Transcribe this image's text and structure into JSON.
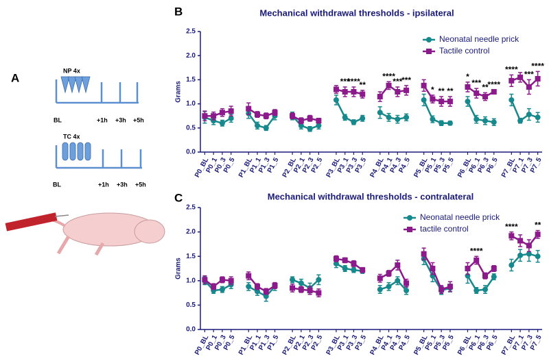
{
  "panel_a": {
    "label": "A",
    "np_label": "NP 4x",
    "tc_label": "TC 4x",
    "np_times": [
      "BL",
      "+1h",
      "+3h",
      "+5h"
    ],
    "tc_times": [
      "BL",
      "+1h",
      "+3h",
      "+5h"
    ]
  },
  "chart_data": [
    {
      "type": "line",
      "label": "B",
      "title": "Mechanical withdrawal thresholds - ipsilateral",
      "y_label": "Grams",
      "categories": [
        "P0_BL",
        "P0_1",
        "P0_3",
        "P0_5",
        null,
        "P1_BL",
        "P1_1",
        "P1_3",
        "P1_5",
        null,
        "P2_BL",
        "P2_1",
        "P2_3",
        "P2_5",
        null,
        "P3_BL",
        "P3_1",
        "P3_3",
        "P3_5",
        null,
        "P4_BL",
        "P4_1",
        "P4_3",
        "P4_5",
        null,
        "P5_BL",
        "P5_1",
        "P5_3",
        "P5_5",
        null,
        "P6_BL",
        "P6_1",
        "P6_3",
        "P6_5",
        null,
        "P7_BL",
        "P7_1",
        "P7_3",
        "P7_5"
      ],
      "ylim": [
        0,
        2.5
      ],
      "yticks": [
        {
          "value": 0,
          "label": "0.0"
        },
        0.5,
        {
          "value": 1,
          "label": "1.0"
        },
        1.5,
        {
          "value": 2,
          "label": "2.0"
        },
        2.5
      ],
      "legend": "upper right",
      "series": [
        {
          "name": "Neonatal needle prick",
          "color": "#17888c",
          "marker": "circle",
          "values": [
            0.72,
            0.65,
            0.6,
            0.7,
            null,
            0.8,
            0.55,
            0.5,
            0.75,
            null,
            0.75,
            0.55,
            0.48,
            0.55,
            null,
            1.08,
            0.72,
            0.62,
            0.7,
            null,
            0.82,
            0.72,
            0.68,
            0.72,
            null,
            1.08,
            0.68,
            0.6,
            0.6,
            null,
            1.05,
            0.68,
            0.65,
            0.62,
            null,
            1.08,
            0.65,
            0.78,
            0.72
          ],
          "errors": [
            0.12,
            0.08,
            0.06,
            0.08,
            null,
            0.1,
            0.07,
            0.05,
            0.08,
            null,
            0.08,
            0.07,
            0.05,
            0.07,
            null,
            0.1,
            0.06,
            0.05,
            0.06,
            null,
            0.12,
            0.08,
            0.08,
            0.07,
            null,
            0.12,
            0.07,
            0.05,
            0.04,
            null,
            0.1,
            0.08,
            0.08,
            0.07,
            null,
            0.12,
            0.05,
            0.12,
            0.1
          ]
        },
        {
          "name": "Tactile control",
          "color": "#8b1a8b",
          "marker": "square",
          "values": [
            0.75,
            0.75,
            0.82,
            0.85,
            null,
            0.9,
            0.78,
            0.75,
            0.82,
            null,
            0.75,
            0.65,
            0.7,
            0.65,
            null,
            1.3,
            1.25,
            1.25,
            1.2,
            null,
            1.15,
            1.38,
            1.25,
            1.28,
            null,
            1.38,
            1.1,
            1.05,
            1.05,
            null,
            1.35,
            1.22,
            1.15,
            1.25,
            null,
            1.48,
            1.55,
            1.35,
            1.52
          ],
          "errors": [
            0.1,
            0.08,
            0.08,
            0.1,
            null,
            0.12,
            0.06,
            0.06,
            0.06,
            null,
            0.06,
            0.06,
            0.06,
            0.05,
            null,
            0.08,
            0.1,
            0.1,
            0.08,
            null,
            0.1,
            0.08,
            0.1,
            0.1,
            null,
            0.12,
            0.08,
            0.1,
            0.1,
            null,
            0.1,
            0.1,
            0.08,
            0.04,
            null,
            0.12,
            0.1,
            0.15,
            0.15
          ]
        }
      ],
      "annotations": [
        {
          "text": "***",
          "category": "P3_1"
        },
        {
          "text": "****",
          "category": "P3_3"
        },
        {
          "text": "**",
          "category": "P3_5"
        },
        {
          "text": "****",
          "category": "P4_1"
        },
        {
          "text": "***",
          "category": "P4_3"
        },
        {
          "text": "***",
          "category": "P4_5"
        },
        {
          "text": "*",
          "category": "P5_1"
        },
        {
          "text": "**",
          "category": "P5_3"
        },
        {
          "text": "**",
          "category": "P5_5"
        },
        {
          "text": "*",
          "category": "P6_BL"
        },
        {
          "text": "***",
          "category": "P6_1"
        },
        {
          "text": "**",
          "category": "P6_3"
        },
        {
          "text": "****",
          "category": "P6_5"
        },
        {
          "text": "****",
          "category": "P7_BL"
        },
        {
          "text": "***",
          "category": "P7_3"
        },
        {
          "text": "****",
          "category": "P7_5"
        }
      ]
    },
    {
      "type": "line",
      "label": "C",
      "title": "Mechanical withdrawal thresholds - contralateral",
      "y_label": "Grams",
      "categories": [
        "P0_BL",
        "P0_1",
        "P0_3",
        "P0_5",
        null,
        "P1_BL",
        "P1_1",
        "P1_3",
        "P1_5",
        null,
        "P2_BL",
        "P2_1",
        "P2_3",
        "P2_5",
        null,
        "P3_BL",
        "P3_1",
        "P3_3",
        "P3_5",
        null,
        "P4_BL",
        "P4_1",
        "P4_3",
        "P4_5",
        null,
        "P5_BL",
        "P5_1",
        "P5_3",
        "P5_5",
        null,
        "P6_BL",
        "P6_1",
        "P6_3",
        "P6_5",
        null,
        "P7_BL",
        "P7_1",
        "P7_3",
        "P7_5"
      ],
      "ylim": [
        0,
        2.5
      ],
      "yticks": [
        {
          "value": 0,
          "label": "0.0"
        },
        0.5,
        {
          "value": 1,
          "label": "1.0"
        },
        1.5,
        {
          "value": 2,
          "label": "2.0"
        },
        2.5
      ],
      "legend": "upper right",
      "series": [
        {
          "name": "Neonatal needle prick",
          "color": "#17888c",
          "marker": "circle",
          "values": [
            1.0,
            0.8,
            0.82,
            0.92,
            null,
            0.88,
            0.78,
            0.68,
            0.88,
            null,
            1.02,
            0.95,
            0.85,
            1.02,
            null,
            1.35,
            1.25,
            1.22,
            1.2,
            null,
            0.82,
            0.88,
            1.0,
            0.8,
            null,
            1.45,
            1.1,
            0.8,
            0.85,
            null,
            1.1,
            0.8,
            0.82,
            1.08,
            null,
            1.32,
            1.52,
            1.55,
            1.5
          ],
          "errors": [
            0.08,
            0.06,
            0.06,
            0.08,
            null,
            0.08,
            0.08,
            0.1,
            0.08,
            null,
            0.06,
            0.08,
            0.1,
            0.1,
            null,
            0.08,
            0.06,
            0.05,
            0.05,
            null,
            0.08,
            0.08,
            0.08,
            0.08,
            null,
            0.12,
            0.12,
            0.08,
            0.08,
            null,
            0.15,
            0.06,
            0.08,
            0.06,
            null,
            0.12,
            0.12,
            0.15,
            0.12
          ]
        },
        {
          "name": "tactile control",
          "color": "#8b1a8b",
          "marker": "square",
          "values": [
            1.02,
            0.88,
            1.02,
            1.0,
            null,
            1.1,
            0.88,
            0.78,
            0.9,
            null,
            0.85,
            0.82,
            0.8,
            0.75,
            null,
            1.45,
            1.42,
            1.35,
            1.22,
            null,
            1.05,
            1.15,
            1.32,
            0.95,
            null,
            1.55,
            1.25,
            0.82,
            0.88,
            null,
            1.25,
            1.42,
            1.1,
            1.25,
            null,
            1.92,
            1.82,
            1.72,
            1.95
          ],
          "errors": [
            0.08,
            0.06,
            0.06,
            0.08,
            null,
            0.08,
            0.06,
            0.06,
            0.06,
            null,
            0.08,
            0.06,
            0.08,
            0.08,
            null,
            0.06,
            0.05,
            0.06,
            0.05,
            null,
            0.08,
            0.06,
            0.1,
            0.08,
            null,
            0.12,
            0.12,
            0.08,
            0.1,
            null,
            0.12,
            0.08,
            0.06,
            0.06,
            null,
            0.08,
            0.12,
            0.12,
            0.08
          ]
        }
      ],
      "annotations": [
        {
          "text": "****",
          "category": "P6_1"
        },
        {
          "text": "****",
          "category": "P7_BL"
        },
        {
          "text": "**",
          "category": "P7_5"
        }
      ]
    }
  ]
}
